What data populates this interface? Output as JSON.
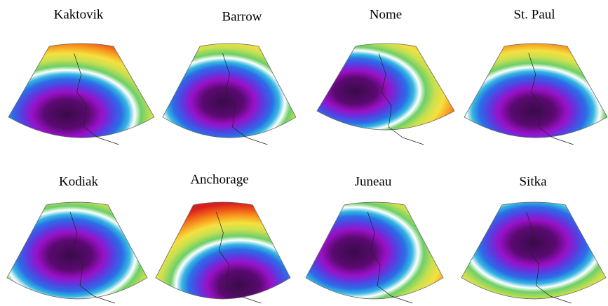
{
  "panels": [
    {
      "title": "Kaktovik"
    },
    {
      "title": "Barrow"
    },
    {
      "title": "Nome"
    },
    {
      "title": "St. Paul"
    },
    {
      "title": "Kodiak"
    },
    {
      "title": "Anchorage"
    },
    {
      "title": "Juneau"
    },
    {
      "title": "Sitka"
    }
  ]
}
